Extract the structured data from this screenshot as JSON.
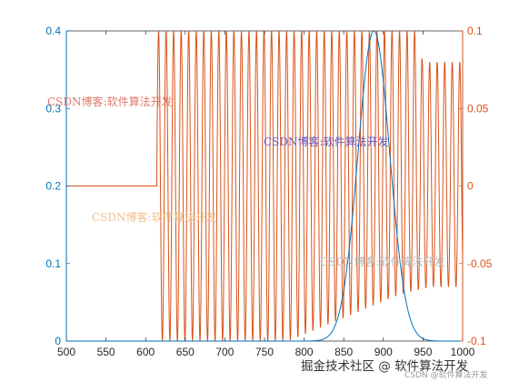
{
  "chart_data": {
    "type": "line",
    "xlim": [
      500,
      1000
    ],
    "x_ticks": [
      500,
      550,
      600,
      650,
      700,
      750,
      800,
      850,
      900,
      950,
      1000
    ],
    "y_left": {
      "lim": [
        0,
        0.4
      ],
      "ticks": [
        "0",
        "0.1",
        "0.2",
        "0.3",
        "0.4"
      ],
      "color": "#0072BD"
    },
    "y_right": {
      "lim": [
        -0.1,
        0.1
      ],
      "ticks": [
        "-0.1",
        "-0.05",
        "0",
        "0.05",
        "0.1"
      ],
      "color": "#D95319"
    },
    "series": [
      {
        "axis": "left",
        "color": "#0072BD",
        "shape": "gaussian",
        "center": 888,
        "sigma": 20,
        "peak": 0.4
      },
      {
        "axis": "right",
        "color": "#D95319",
        "flat_until": 614,
        "flat_value": 0,
        "period": 9.5,
        "amp_pos": [
          [
            614,
            0.1
          ],
          [
            940,
            0.1
          ],
          [
            950,
            0.08
          ],
          [
            1000,
            0.08
          ]
        ],
        "amp_neg": [
          [
            614,
            -0.1
          ],
          [
            780,
            -0.1
          ],
          [
            850,
            -0.085
          ],
          [
            920,
            -0.07
          ],
          [
            960,
            -0.065
          ],
          [
            1000,
            -0.065
          ]
        ]
      }
    ]
  },
  "watermarks": {
    "wm1": "CSDN博客:软件算法开发",
    "wm2": "CSDN博客:软件算法开发",
    "wm3": "CSDN博客:软件算法开发",
    "wm4": "CSDN博客:软件算法开发"
  },
  "footer": "掘金技术社区 @ 软件算法开发",
  "footer_small": "CSDN @软件算法开发"
}
